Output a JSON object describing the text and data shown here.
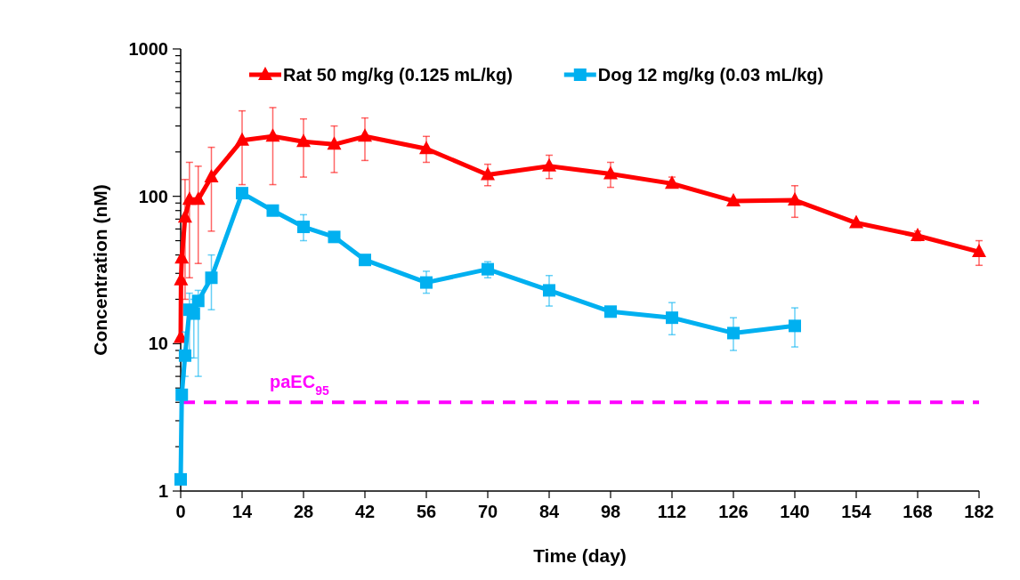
{
  "chart_data": {
    "type": "line",
    "xlabel": "Time (day)",
    "ylabel": "Concentration (nM)",
    "log": "y",
    "legend": "top",
    "grid": false,
    "xlim": [
      0,
      182
    ],
    "xticks": [
      0,
      14,
      28,
      42,
      56,
      70,
      84,
      98,
      112,
      126,
      140,
      154,
      168,
      182
    ],
    "ylim": [
      1,
      1000
    ],
    "yticks": [
      1,
      {
        "value": 2,
        "label": null
      },
      {
        "value": 3,
        "label": null
      },
      {
        "value": 4,
        "label": null
      },
      {
        "value": 5,
        "label": null
      },
      {
        "value": 6,
        "label": null
      },
      {
        "value": 7,
        "label": null
      },
      {
        "value": 8,
        "label": null
      },
      {
        "value": 9,
        "label": null
      },
      10,
      {
        "value": 20,
        "label": null
      },
      {
        "value": 30,
        "label": null
      },
      {
        "value": 40,
        "label": null
      },
      {
        "value": 50,
        "label": null
      },
      {
        "value": 60,
        "label": null
      },
      {
        "value": 70,
        "label": null
      },
      {
        "value": 80,
        "label": null
      },
      {
        "value": 90,
        "label": null
      },
      100,
      {
        "value": 200,
        "label": null
      },
      {
        "value": 300,
        "label": null
      },
      {
        "value": 400,
        "label": null
      },
      {
        "value": 500,
        "label": null
      },
      {
        "value": 600,
        "label": null
      },
      {
        "value": 700,
        "label": null
      },
      {
        "value": 800,
        "label": null
      },
      {
        "value": 900,
        "label": null
      },
      1000
    ],
    "ref_lines": [
      {
        "axis": "y",
        "value": 4,
        "label": "paEC$_{95}$",
        "color": "#ff00ff",
        "line_style": "dashed"
      }
    ],
    "series": [
      {
        "name": "Rat 50 mg/kg (0.125 mL/kg)",
        "color": "#ff0000",
        "marker": "triangle",
        "x": [
          0,
          0.08,
          0.25,
          1,
          2,
          4,
          7,
          14,
          21,
          28,
          35,
          42,
          56,
          70,
          84,
          98,
          112,
          126,
          140,
          154,
          168,
          182
        ],
        "values": [
          11,
          27,
          38,
          72,
          95,
          95,
          135,
          240,
          255,
          235,
          225,
          255,
          210,
          140,
          160,
          142,
          122,
          93,
          94,
          66,
          54,
          42
        ],
        "errors": [
          null,
          null,
          null,
          [
            20,
            130
          ],
          [
            28,
            170
          ],
          [
            35,
            160
          ],
          [
            58,
            215
          ],
          [
            120,
            380
          ],
          [
            120,
            400
          ],
          [
            135,
            335
          ],
          [
            145,
            300
          ],
          [
            175,
            340
          ],
          [
            170,
            255
          ],
          [
            118,
            165
          ],
          [
            132,
            190
          ],
          [
            115,
            170
          ],
          [
            115,
            135
          ],
          null,
          [
            72,
            118
          ],
          null,
          [
            50,
            58
          ],
          [
            34,
            50
          ]
        ]
      },
      {
        "name": "Dog 12 mg/kg (0.03 mL/kg)",
        "color": "#00b0f0",
        "marker": "square",
        "x": [
          0,
          0.25,
          1,
          2,
          3,
          4,
          7,
          14,
          21,
          28,
          35,
          42,
          56,
          70,
          84,
          98,
          112,
          126,
          140
        ],
        "values": [
          1.2,
          4.5,
          8.3,
          17,
          16,
          19.5,
          28,
          105,
          80,
          62,
          53,
          37,
          26,
          32,
          23,
          16.5,
          15,
          11.8,
          13.2
        ],
        "errors": [
          null,
          null,
          [
            6,
            12
          ],
          [
            8,
            22
          ],
          [
            8,
            20
          ],
          [
            6,
            23
          ],
          [
            17,
            40
          ],
          null,
          null,
          [
            50,
            75
          ],
          null,
          null,
          [
            22,
            31
          ],
          [
            28,
            36
          ],
          [
            18,
            29
          ],
          null,
          [
            11.5,
            19
          ],
          [
            9,
            15
          ],
          [
            9.5,
            17.5
          ]
        ]
      }
    ]
  }
}
